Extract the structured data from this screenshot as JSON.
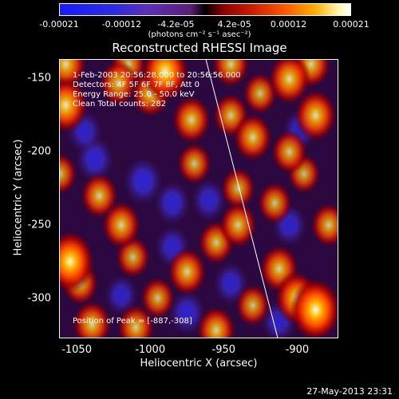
{
  "chart_data": {
    "type": "heatmap",
    "title": "Reconstructed RHESSI Image",
    "xlabel": "Heliocentric X (arcsec)",
    "ylabel": "Heliocentric Y (arcsec)",
    "xlim": [
      -1062,
      -872
    ],
    "ylim": [
      -327,
      -137
    ],
    "x_ticks": [
      "-1050",
      "-1000",
      "-950",
      "-900"
    ],
    "y_ticks": [
      "-150",
      "-200",
      "-250",
      "-300"
    ],
    "colorbar": {
      "ticks": [
        "-0.00021",
        "-0.00012",
        "-4.2e-05",
        "4.2e-05",
        "0.00012",
        "0.00021"
      ],
      "min": -0.00021,
      "max": 0.00021,
      "units_label": "(photons cm⁻² s⁻¹ asec⁻²)"
    },
    "annotations": [
      "1-Feb-2003 20:56:28.000 to 20:56:56.000",
      "Detectors: 4F 5F 6F 7F 8F, Att 0",
      "Energy Range: 25.0 - 50.0 keV",
      "Clean    Total counts: 282"
    ],
    "peak_label": "Position of Peak = [-887,-308]",
    "peak_position": [
      -887,
      -308
    ],
    "limb_line": [
      [
        -962,
        -137
      ],
      [
        -913,
        -327
      ]
    ],
    "blobs": [
      {
        "x": -1058,
        "y": -168,
        "v": 0.8
      },
      {
        "x": -1058,
        "y": -140,
        "v": 0.7
      },
      {
        "x": -1022,
        "y": -153,
        "v": 0.55
      },
      {
        "x": -1015,
        "y": -140,
        "v": 0.5
      },
      {
        "x": -1000,
        "y": -160,
        "v": 0.6
      },
      {
        "x": -990,
        "y": -145,
        "v": 0.9
      },
      {
        "x": -972,
        "y": -178,
        "v": 0.6
      },
      {
        "x": -945,
        "y": -140,
        "v": 0.55
      },
      {
        "x": -945,
        "y": -175,
        "v": 0.5
      },
      {
        "x": -930,
        "y": -190,
        "v": 0.6
      },
      {
        "x": -925,
        "y": -160,
        "v": 0.45
      },
      {
        "x": -905,
        "y": -150,
        "v": 0.7
      },
      {
        "x": -890,
        "y": -140,
        "v": 0.6
      },
      {
        "x": -887,
        "y": -175,
        "v": 0.7
      },
      {
        "x": -905,
        "y": -200,
        "v": 0.5
      },
      {
        "x": -1062,
        "y": -215,
        "v": 0.45
      },
      {
        "x": -1035,
        "y": -230,
        "v": 0.55
      },
      {
        "x": -1020,
        "y": -250,
        "v": 0.6
      },
      {
        "x": -970,
        "y": -208,
        "v": 0.45
      },
      {
        "x": -940,
        "y": -225,
        "v": 0.45
      },
      {
        "x": -940,
        "y": -250,
        "v": 0.55
      },
      {
        "x": -915,
        "y": -235,
        "v": 0.45
      },
      {
        "x": -895,
        "y": -215,
        "v": 0.4
      },
      {
        "x": -1055,
        "y": -275,
        "v": 0.95
      },
      {
        "x": -1048,
        "y": -290,
        "v": 0.5
      },
      {
        "x": -1012,
        "y": -272,
        "v": 0.45
      },
      {
        "x": -995,
        "y": -300,
        "v": 0.45
      },
      {
        "x": -975,
        "y": -282,
        "v": 0.6
      },
      {
        "x": -955,
        "y": -262,
        "v": 0.5
      },
      {
        "x": -930,
        "y": -305,
        "v": 0.45
      },
      {
        "x": -912,
        "y": -280,
        "v": 0.6
      },
      {
        "x": -900,
        "y": -300,
        "v": 0.75
      },
      {
        "x": -887,
        "y": -308,
        "v": 1.0
      },
      {
        "x": -878,
        "y": -250,
        "v": 0.5
      },
      {
        "x": -1040,
        "y": -318,
        "v": 0.6
      },
      {
        "x": -1010,
        "y": -320,
        "v": 0.55
      },
      {
        "x": -955,
        "y": -322,
        "v": 0.6
      },
      {
        "x": -1038,
        "y": -205,
        "v": -0.55
      },
      {
        "x": -1045,
        "y": -186,
        "v": -0.45
      },
      {
        "x": -1005,
        "y": -220,
        "v": -0.6
      },
      {
        "x": -985,
        "y": -235,
        "v": -0.5
      },
      {
        "x": -960,
        "y": -233,
        "v": -0.45
      },
      {
        "x": -975,
        "y": -310,
        "v": -0.5
      },
      {
        "x": -905,
        "y": -250,
        "v": -0.45
      },
      {
        "x": -898,
        "y": -185,
        "v": -0.4
      },
      {
        "x": -912,
        "y": -316,
        "v": -0.45
      },
      {
        "x": -1020,
        "y": -298,
        "v": -0.4
      },
      {
        "x": -985,
        "y": -265,
        "v": -0.45
      },
      {
        "x": -945,
        "y": -290,
        "v": -0.45
      }
    ]
  },
  "footer_date": "27-May-2013 23:31"
}
